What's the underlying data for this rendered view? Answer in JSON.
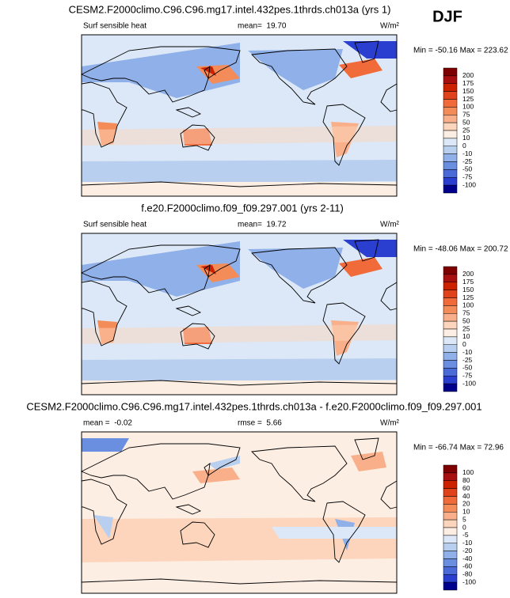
{
  "figure_label": "DJF",
  "panels": [
    {
      "title": "CESM2.F2000climo.C96.C96.mg17.intel.432pes.1thrds.ch013a (yrs 1)",
      "left_label": "Surf sensible heat",
      "center_label": "mean=  19.70",
      "units": "W/m²",
      "min_max": "Min = -50.16 Max = 223.62",
      "colorbar": {
        "levels": [
          200,
          175,
          150,
          125,
          100,
          75,
          50,
          25,
          10,
          0,
          -10,
          -25,
          -50,
          -75,
          -100
        ],
        "colors": [
          "#7f0000",
          "#a80f0f",
          "#cc2200",
          "#e0421b",
          "#f06a3a",
          "#f48c5a",
          "#f9b08a",
          "#fcd5bc",
          "#fdeee4",
          "#dce8f7",
          "#b8cff0",
          "#8fb0e8",
          "#6a8fe0",
          "#4a6ad8",
          "#2a3fcf",
          "#00008c"
        ]
      }
    },
    {
      "title": "f.e20.F2000climo.f09_f09.297.001 (yrs 2-11)",
      "left_label": "Surf sensible heat",
      "center_label": "mean=  19.72",
      "units": "W/m²",
      "min_max": "Min = -48.06 Max = 200.72",
      "colorbar": {
        "levels": [
          200,
          175,
          150,
          125,
          100,
          75,
          50,
          25,
          10,
          0,
          -10,
          -25,
          -50,
          -75,
          -100
        ],
        "colors": [
          "#7f0000",
          "#a80f0f",
          "#cc2200",
          "#e0421b",
          "#f06a3a",
          "#f48c5a",
          "#f9b08a",
          "#fcd5bc",
          "#fdeee4",
          "#dce8f7",
          "#b8cff0",
          "#8fb0e8",
          "#6a8fe0",
          "#4a6ad8",
          "#2a3fcf",
          "#00008c"
        ]
      }
    },
    {
      "title": "CESM2.F2000climo.C96.C96.mg17.intel.432pes.1thrds.ch013a - f.e20.F2000climo.f09_f09.297.001",
      "left_label": "mean =  -0.02",
      "center_label": "rmse =  5.66",
      "units": "W/m²",
      "min_max": "Min = -66.74 Max = 72.96",
      "colorbar": {
        "levels": [
          100,
          80,
          60,
          40,
          20,
          10,
          5,
          0,
          -5,
          -10,
          -20,
          -40,
          -60,
          -80,
          -100
        ],
        "colors": [
          "#7f0000",
          "#a80f0f",
          "#cc2200",
          "#e0421b",
          "#f06a3a",
          "#f48c5a",
          "#f9b08a",
          "#fcd5bc",
          "#fdeee4",
          "#dce8f7",
          "#b8cff0",
          "#8fb0e8",
          "#6a8fe0",
          "#4a6ad8",
          "#2a3fcf",
          "#00008c"
        ]
      }
    }
  ]
}
